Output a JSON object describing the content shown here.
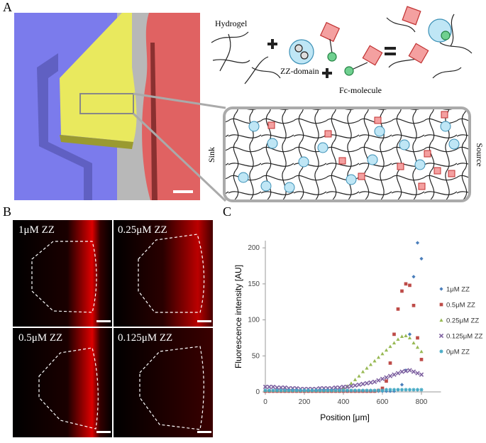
{
  "panel_labels": [
    "A",
    "B",
    "C"
  ],
  "schematic": {
    "hydrogel": "Hydrogel",
    "zz_domain": "ZZ-domain",
    "fc_molecule": "Fc-molecule",
    "sink": "Sink",
    "source": "Source"
  },
  "micrographs": [
    "1μM ZZ",
    "0.25μM ZZ",
    "0.5μM ZZ",
    "0.125μM ZZ"
  ],
  "chart_data": {
    "type": "scatter",
    "x_label": "Position [μm]",
    "y_label": "Fluorescence intensity [AU]",
    "xlim": [
      0,
      900
    ],
    "ylim": [
      0,
      210
    ],
    "xticks": [
      0,
      200,
      400,
      600,
      800
    ],
    "yticks": [
      0,
      50,
      100,
      150,
      200
    ],
    "grid": false,
    "legend": "right",
    "x": [
      0,
      20,
      40,
      60,
      80,
      100,
      120,
      140,
      160,
      180,
      200,
      220,
      240,
      260,
      280,
      300,
      320,
      340,
      360,
      380,
      400,
      420,
      440,
      460,
      480,
      500,
      520,
      540,
      560,
      580,
      600,
      620,
      640,
      660,
      680,
      700,
      720,
      740,
      760,
      780,
      800
    ],
    "series": [
      {
        "name": "1μM ZZ",
        "color": "#4a7ebb",
        "marker": "diamond",
        "values": [
          1,
          1,
          1,
          1,
          1,
          1,
          1,
          1,
          1,
          1,
          1,
          1,
          1,
          1,
          1,
          1,
          1,
          1,
          1,
          1,
          1,
          1,
          1,
          1,
          1,
          1,
          1,
          1,
          1,
          1,
          1,
          1,
          1,
          1,
          3,
          10,
          30,
          80,
          160,
          207,
          185
        ]
      },
      {
        "name": "0.5μM ZZ",
        "color": "#be4b48",
        "marker": "square",
        "values": [
          1,
          1,
          1,
          1,
          1,
          1,
          1,
          1,
          1,
          1,
          1,
          1,
          1,
          1,
          1,
          1,
          1,
          1,
          1,
          1,
          1,
          1,
          1,
          1,
          1,
          1,
          1,
          1,
          1,
          2,
          5,
          15,
          40,
          80,
          115,
          140,
          150,
          148,
          120,
          75,
          45
        ]
      },
      {
        "name": "0.25μM ZZ",
        "color": "#98b954",
        "marker": "triangle",
        "values": [
          2,
          2,
          2,
          2,
          2,
          2,
          2,
          2,
          2,
          2,
          2,
          2,
          2,
          2,
          2,
          2,
          2,
          2,
          2,
          2,
          5,
          8,
          12,
          17,
          22,
          28,
          33,
          38,
          43,
          48,
          53,
          58,
          63,
          68,
          73,
          77,
          78,
          75,
          68,
          62,
          56
        ]
      },
      {
        "name": "0.125μM ZZ",
        "color": "#7d60a0",
        "marker": "cross",
        "values": [
          7,
          7,
          7,
          6,
          6,
          6,
          5,
          5,
          5,
          4,
          4,
          4,
          4,
          4,
          5,
          5,
          5,
          5,
          6,
          6,
          7,
          7,
          8,
          9,
          10,
          11,
          12,
          13,
          14,
          16,
          18,
          20,
          22,
          24,
          26,
          28,
          29,
          30,
          28,
          26,
          24
        ]
      },
      {
        "name": "0μM ZZ",
        "color": "#46aac5",
        "marker": "star",
        "values": [
          2,
          2,
          2,
          2,
          2,
          2,
          2,
          2,
          2,
          2,
          2,
          2,
          2,
          2,
          2,
          2,
          2,
          2,
          2,
          2,
          2,
          2,
          2,
          2,
          2,
          2,
          2,
          2,
          2,
          2,
          2,
          3,
          3,
          3,
          3,
          3,
          3,
          3,
          3,
          3,
          3
        ]
      }
    ]
  }
}
